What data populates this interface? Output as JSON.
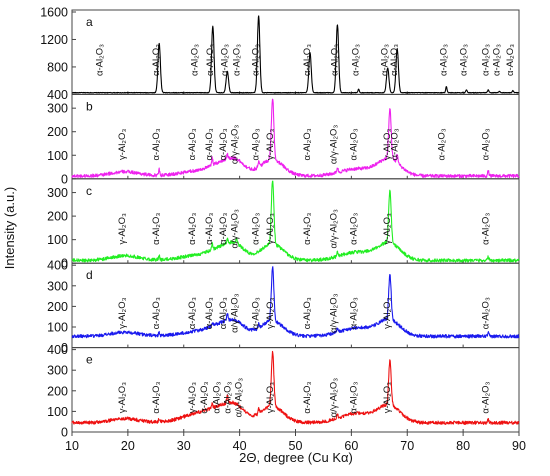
{
  "chart_data": {
    "type": "line",
    "title": "",
    "xlabel": "2Θ, degree (Cu Kα)",
    "ylabel": "Intensity (a.u.)",
    "xlim": [
      10,
      90
    ],
    "xticks": [
      10,
      20,
      30,
      40,
      50,
      60,
      70,
      80,
      90
    ],
    "grid": false,
    "legend": "none",
    "panels": [
      {
        "id": "a",
        "color": "#000000",
        "ylim": [
          400,
          1600
        ],
        "yticks": [
          400,
          800,
          1200,
          1600
        ],
        "baseline": 425,
        "noise": 4,
        "peaks": [
          {
            "x": 25.6,
            "h": 720
          },
          {
            "x": 35.2,
            "h": 970
          },
          {
            "x": 37.8,
            "h": 310
          },
          {
            "x": 43.4,
            "h": 1120
          },
          {
            "x": 52.6,
            "h": 580
          },
          {
            "x": 57.5,
            "h": 990
          },
          {
            "x": 61.3,
            "h": 50
          },
          {
            "x": 66.5,
            "h": 360
          },
          {
            "x": 68.2,
            "h": 640
          },
          {
            "x": 77.0,
            "h": 90
          },
          {
            "x": 80.6,
            "h": 40
          },
          {
            "x": 84.5,
            "h": 40
          },
          {
            "x": 86.5,
            "h": 20
          },
          {
            "x": 88.9,
            "h": 30
          }
        ],
        "annotations": [
          {
            "x": 15.5,
            "label": "α-Al₂O₃"
          },
          {
            "x": 25.6,
            "label": "α-Al₂O₃"
          },
          {
            "x": 32.5,
            "label": "α-Al₂O₃"
          },
          {
            "x": 35.2,
            "label": "α-Al₂O₃"
          },
          {
            "x": 37.8,
            "label": "α-Al₂O₃"
          },
          {
            "x": 40.0,
            "label": "α-Al₂O₃"
          },
          {
            "x": 43.4,
            "label": "α-Al₂O₃"
          },
          {
            "x": 52.6,
            "label": "α-Al₂O₃"
          },
          {
            "x": 57.5,
            "label": "α-Al₂O₃"
          },
          {
            "x": 61.3,
            "label": "α-Al₂O₃"
          },
          {
            "x": 66.5,
            "label": "α-Al₂O₃"
          },
          {
            "x": 68.2,
            "label": "α-Al₂O₃"
          },
          {
            "x": 77.0,
            "label": "α-Al₂O₃"
          },
          {
            "x": 80.6,
            "label": "α-Al₂O₃"
          },
          {
            "x": 84.5,
            "label": "α-Al₂O₃"
          },
          {
            "x": 86.5,
            "label": "α-Al₂O₃"
          },
          {
            "x": 88.9,
            "label": "α-Al₂O₃"
          }
        ]
      },
      {
        "id": "b",
        "color": "#ee22ee",
        "ylim": [
          0,
          350
        ],
        "yticks": [
          0,
          100,
          200,
          300
        ],
        "baseline": 12,
        "noise": 7,
        "humps": [
          {
            "x": 19.5,
            "h": 18,
            "w": 2.5
          },
          {
            "x": 32.0,
            "h": 18,
            "w": 3
          },
          {
            "x": 37.5,
            "h": 55,
            "w": 2.5
          },
          {
            "x": 39.5,
            "h": 30,
            "w": 1.5
          },
          {
            "x": 45.8,
            "h": 70,
            "w": 2
          },
          {
            "x": 61.0,
            "h": 30,
            "w": 3
          },
          {
            "x": 66.8,
            "h": 70,
            "w": 2
          }
        ],
        "peaks": [
          {
            "x": 25.6,
            "h": 25
          },
          {
            "x": 35.1,
            "h": 30
          },
          {
            "x": 37.8,
            "h": 20
          },
          {
            "x": 43.4,
            "h": 25
          },
          {
            "x": 45.9,
            "h": 260
          },
          {
            "x": 57.5,
            "h": 20
          },
          {
            "x": 66.9,
            "h": 210
          },
          {
            "x": 68.2,
            "h": 40
          },
          {
            "x": 84.5,
            "h": 20
          }
        ],
        "annotations": [
          {
            "x": 19.5,
            "label": "γ-Al₂O₃"
          },
          {
            "x": 25.6,
            "label": "α-Al₂O₃"
          },
          {
            "x": 32.0,
            "label": "α-Al₂O₃"
          },
          {
            "x": 35.1,
            "label": "α-Al₂O₃"
          },
          {
            "x": 37.6,
            "label": "α-Al₂O₃"
          },
          {
            "x": 39.6,
            "label": "α/γ-Al₂O₃"
          },
          {
            "x": 43.4,
            "label": "α-Al₂O₃"
          },
          {
            "x": 46.0,
            "label": "γ-Al₂O₃"
          },
          {
            "x": 52.6,
            "label": "α-Al₂O₃"
          },
          {
            "x": 57.3,
            "label": "α/γ-Al₂O₃"
          },
          {
            "x": 60.9,
            "label": "α-Al₂O₃"
          },
          {
            "x": 66.9,
            "label": "γ-Al₂O₃"
          },
          {
            "x": 68.3,
            "label": "α-Al₂O₃"
          },
          {
            "x": 76.7,
            "label": "α-Al₂O₃"
          },
          {
            "x": 84.5,
            "label": "α-Al₂O₃"
          }
        ]
      },
      {
        "id": "c",
        "color": "#22ee22",
        "ylim": [
          0,
          350
        ],
        "yticks": [
          0,
          100,
          200,
          300
        ],
        "baseline": 12,
        "noise": 7,
        "humps": [
          {
            "x": 19.5,
            "h": 20,
            "w": 2.5
          },
          {
            "x": 32.0,
            "h": 18,
            "w": 3
          },
          {
            "x": 37.5,
            "h": 55,
            "w": 2.5
          },
          {
            "x": 39.5,
            "h": 30,
            "w": 1.5
          },
          {
            "x": 45.8,
            "h": 70,
            "w": 2
          },
          {
            "x": 61.0,
            "h": 35,
            "w": 3
          },
          {
            "x": 66.8,
            "h": 70,
            "w": 2
          }
        ],
        "peaks": [
          {
            "x": 25.6,
            "h": 15
          },
          {
            "x": 35.1,
            "h": 25
          },
          {
            "x": 37.8,
            "h": 15
          },
          {
            "x": 39.5,
            "h": 20
          },
          {
            "x": 45.9,
            "h": 270
          },
          {
            "x": 57.5,
            "h": 15
          },
          {
            "x": 66.9,
            "h": 225
          },
          {
            "x": 84.5,
            "h": 15
          }
        ],
        "annotations": [
          {
            "x": 19.5,
            "label": "γ-Al₂O₃"
          },
          {
            "x": 25.6,
            "label": "α-Al₂O₃"
          },
          {
            "x": 32.0,
            "label": "α-Al₂O₃"
          },
          {
            "x": 35.1,
            "label": "α-Al₂O₃"
          },
          {
            "x": 37.6,
            "label": "α-Al₂O₃"
          },
          {
            "x": 39.6,
            "label": "α/γ-Al₂O₃"
          },
          {
            "x": 43.4,
            "label": "α-Al₂O₃"
          },
          {
            "x": 46.0,
            "label": "γ-Al₂O₃"
          },
          {
            "x": 52.6,
            "label": "α-Al₂O₃"
          },
          {
            "x": 57.3,
            "label": "α/γ-Al₂O₃"
          },
          {
            "x": 60.9,
            "label": "α-Al₂O₃"
          },
          {
            "x": 66.9,
            "label": "γ-Al₂O₃"
          },
          {
            "x": 84.5,
            "label": "α-Al₂O₃"
          }
        ]
      },
      {
        "id": "d",
        "color": "#1a1aee",
        "ylim": [
          0,
          400
        ],
        "yticks": [
          0,
          100,
          200,
          300,
          400
        ],
        "baseline": 55,
        "noise": 8,
        "humps": [
          {
            "x": 19.5,
            "h": 20,
            "w": 2.5
          },
          {
            "x": 32.0,
            "h": 20,
            "w": 3
          },
          {
            "x": 37.5,
            "h": 60,
            "w": 2.5
          },
          {
            "x": 39.5,
            "h": 30,
            "w": 1.5
          },
          {
            "x": 45.8,
            "h": 75,
            "w": 2
          },
          {
            "x": 61.0,
            "h": 40,
            "w": 3
          },
          {
            "x": 66.8,
            "h": 75,
            "w": 2
          }
        ],
        "peaks": [
          {
            "x": 25.6,
            "h": 15
          },
          {
            "x": 35.1,
            "h": 15
          },
          {
            "x": 37.8,
            "h": 30
          },
          {
            "x": 43.4,
            "h": 20
          },
          {
            "x": 45.9,
            "h": 260
          },
          {
            "x": 57.5,
            "h": 15
          },
          {
            "x": 66.9,
            "h": 215
          },
          {
            "x": 84.5,
            "h": 15
          }
        ],
        "annotations": [
          {
            "x": 19.5,
            "label": "γ-Al₂O₃"
          },
          {
            "x": 25.6,
            "label": "α-Al₂O₃"
          },
          {
            "x": 32.0,
            "label": "α-Al₂O₃"
          },
          {
            "x": 35.1,
            "label": "α-Al₂O₃"
          },
          {
            "x": 37.6,
            "label": "α-Al₂O₃"
          },
          {
            "x": 39.6,
            "label": "α/γ-Al₂O₃"
          },
          {
            "x": 43.4,
            "label": "α-Al₂O₃"
          },
          {
            "x": 46.0,
            "label": "γ-Al₂O₃"
          },
          {
            "x": 52.6,
            "label": "α-Al₂O₃"
          },
          {
            "x": 57.3,
            "label": "α/γ-Al₂O₃"
          },
          {
            "x": 60.9,
            "label": "α-Al₂O₃"
          },
          {
            "x": 66.9,
            "label": "γ-Al₂O₃"
          },
          {
            "x": 84.5,
            "label": "α-Al₂O₃"
          }
        ]
      },
      {
        "id": "e",
        "color": "#ee1111",
        "ylim": [
          0,
          400
        ],
        "yticks": [
          0,
          100,
          200,
          300,
          400
        ],
        "baseline": 45,
        "noise": 8,
        "humps": [
          {
            "x": 19.5,
            "h": 20,
            "w": 2.5
          },
          {
            "x": 32.5,
            "h": 40,
            "w": 3
          },
          {
            "x": 37.5,
            "h": 70,
            "w": 2.5
          },
          {
            "x": 39.5,
            "h": 35,
            "w": 1.5
          },
          {
            "x": 45.8,
            "h": 80,
            "w": 2
          },
          {
            "x": 61.0,
            "h": 45,
            "w": 3
          },
          {
            "x": 66.8,
            "h": 80,
            "w": 2
          }
        ],
        "peaks": [
          {
            "x": 25.6,
            "h": 15
          },
          {
            "x": 35.1,
            "h": 20
          },
          {
            "x": 37.8,
            "h": 40
          },
          {
            "x": 43.4,
            "h": 25
          },
          {
            "x": 45.9,
            "h": 260
          },
          {
            "x": 57.5,
            "h": 15
          },
          {
            "x": 66.9,
            "h": 215
          },
          {
            "x": 84.5,
            "h": 15
          }
        ],
        "annotations": [
          {
            "x": 19.5,
            "label": "γ-Al₂O₃"
          },
          {
            "x": 25.6,
            "label": "α-Al₂O₃"
          },
          {
            "x": 32.0,
            "label": "γ-Al₂O₃"
          },
          {
            "x": 34.2,
            "label": "α-Al₂O₃"
          },
          {
            "x": 36.4,
            "label": "α-Al₂O₃"
          },
          {
            "x": 38.4,
            "label": "α-Al₂O₃"
          },
          {
            "x": 40.3,
            "label": "α/γ-Al₂O₃"
          },
          {
            "x": 46.0,
            "label": "γ-Al₂O₃"
          },
          {
            "x": 52.6,
            "label": "α-Al₂O₃"
          },
          {
            "x": 57.3,
            "label": "α/γ-Al₂O₃"
          },
          {
            "x": 60.9,
            "label": "α-Al₂O₃"
          },
          {
            "x": 66.9,
            "label": "γ-Al₂O₃"
          },
          {
            "x": 84.5,
            "label": "α-Al₂O₃"
          }
        ]
      }
    ]
  }
}
